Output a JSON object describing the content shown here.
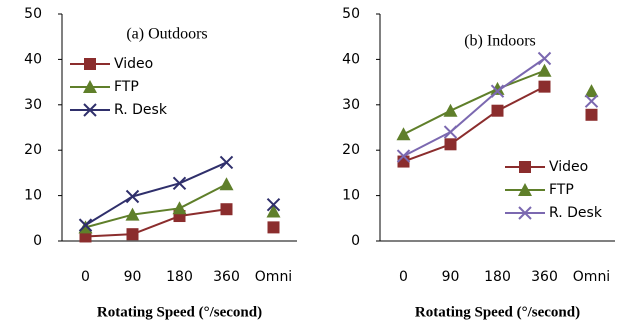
{
  "chart_data": [
    {
      "type": "line",
      "annotation": "(a) Outdoors",
      "x_label": "Rotating Speed (°/second)",
      "categories": [
        "0",
        "90",
        "180",
        "360",
        "Omni"
      ],
      "ylim": [
        0,
        50
      ],
      "yticks": [
        0,
        10,
        20,
        30,
        40,
        50
      ],
      "legend_position": "upper left",
      "series": [
        {
          "name": "Video",
          "color": "#8b2d2d",
          "marker": "square",
          "values": [
            1,
            1.5,
            5.5,
            7,
            3
          ]
        },
        {
          "name": "FTP",
          "color": "#5f7f2a",
          "marker": "triangle",
          "values": [
            3,
            5.8,
            7.2,
            12.5,
            6.5
          ]
        },
        {
          "name": "R. Desk",
          "color": "#2f2f6b",
          "marker": "x",
          "values": [
            3.5,
            9.8,
            12.7,
            17.3,
            8
          ]
        }
      ]
    },
    {
      "type": "line",
      "annotation": "(b) Indoors",
      "x_label": "Rotating Speed (°/second)",
      "categories": [
        "0",
        "90",
        "180",
        "360",
        "Omni"
      ],
      "ylim": [
        0,
        50
      ],
      "yticks": [
        0,
        10,
        20,
        30,
        40,
        50
      ],
      "legend_position": "lower right",
      "series": [
        {
          "name": "Video",
          "color": "#8b2d2d",
          "marker": "square",
          "values": [
            17.5,
            21.3,
            28.7,
            34,
            27.8
          ]
        },
        {
          "name": "FTP",
          "color": "#5f7f2a",
          "marker": "triangle",
          "values": [
            23.5,
            28.7,
            33.5,
            37.5,
            33
          ]
        },
        {
          "name": "R. Desk",
          "color": "#7b68b0",
          "marker": "x",
          "values": [
            18.7,
            24,
            33,
            40.2,
            30.8
          ]
        }
      ]
    }
  ]
}
